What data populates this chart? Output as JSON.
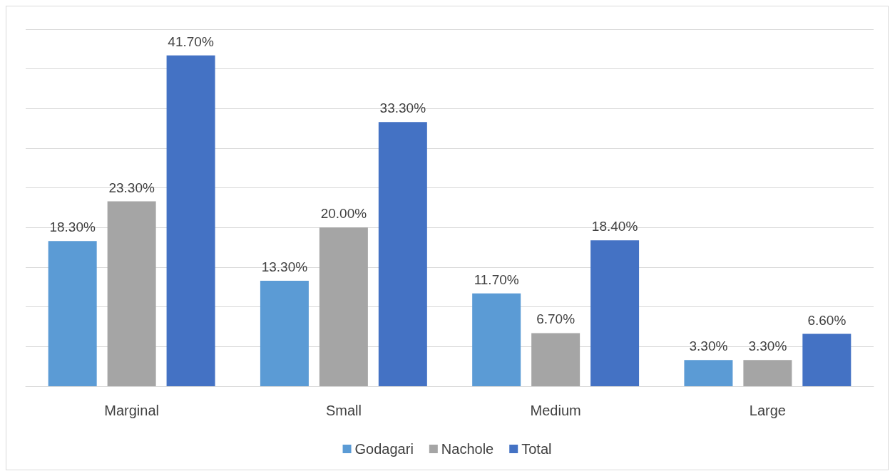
{
  "chart_data": {
    "type": "bar",
    "categories": [
      "Marginal",
      "Small",
      "Medium",
      "Large"
    ],
    "series": [
      {
        "name": "Godagari",
        "color": "#5b9bd5",
        "values": [
          18.3,
          13.3,
          11.7,
          3.3
        ],
        "value_labels": [
          "18.30%",
          "13.30%",
          "11.70%",
          "3.30%"
        ]
      },
      {
        "name": "Nachole",
        "color": "#a5a5a5",
        "values": [
          23.3,
          20.0,
          6.7,
          3.3
        ],
        "value_labels": [
          "23.30%",
          "20.00%",
          "6.70%",
          "3.30%"
        ]
      },
      {
        "name": "Total",
        "color": "#4472c4",
        "values": [
          41.7,
          33.3,
          18.4,
          6.6
        ],
        "value_labels": [
          "41.70%",
          "33.30%",
          "18.40%",
          "6.60%"
        ]
      }
    ],
    "ylim": [
      0,
      45
    ],
    "yticks": [
      {
        "value": 0,
        "label": null
      },
      {
        "value": 5,
        "label": null
      },
      {
        "value": 10,
        "label": null
      },
      {
        "value": 15,
        "label": null
      },
      {
        "value": 20,
        "label": null
      },
      {
        "value": 25,
        "label": null
      },
      {
        "value": 30,
        "label": null
      },
      {
        "value": 35,
        "label": null
      },
      {
        "value": 40,
        "label": null
      },
      {
        "value": 45,
        "label": null
      }
    ],
    "grid": "y",
    "legend": "bottom",
    "tick_labels": "x"
  }
}
